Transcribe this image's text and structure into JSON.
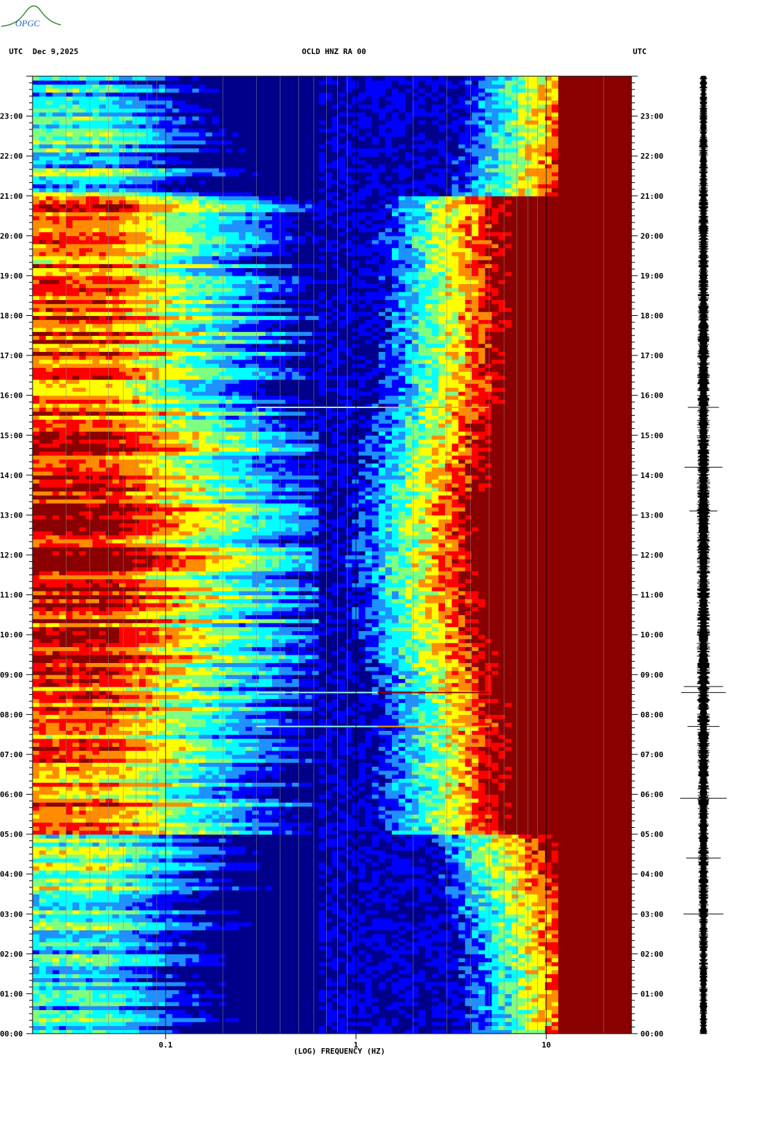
{
  "header": {
    "left_tz": "UTC",
    "date": "Dec 9,2025",
    "station": "OCLD HNZ RA 00",
    "right_tz": "UTC"
  },
  "logo": {
    "text": "OPGC",
    "colors": [
      "#2e8b2e",
      "#2a5fb0"
    ]
  },
  "footer_mark": "",
  "chart_data": {
    "type": "heatmap",
    "title": "OCLD HNZ RA 00",
    "xlabel": "(LOG) FREQUENCY (HZ)",
    "ylabel": "",
    "x_scale": "log",
    "xlim": [
      0.02,
      28
    ],
    "ylim_hours": [
      0,
      24
    ],
    "x_ticks": [
      {
        "value": 0.1,
        "label": "0.1"
      },
      {
        "value": 1,
        "label": "1"
      },
      {
        "value": 10,
        "label": "10"
      }
    ],
    "y_ticks": [
      {
        "hour": 0,
        "label": "00:00"
      },
      {
        "hour": 1,
        "label": "01:00"
      },
      {
        "hour": 2,
        "label": "02:00"
      },
      {
        "hour": 3,
        "label": "03:00"
      },
      {
        "hour": 4,
        "label": "04:00"
      },
      {
        "hour": 5,
        "label": "05:00"
      },
      {
        "hour": 6,
        "label": "06:00"
      },
      {
        "hour": 7,
        "label": "07:00"
      },
      {
        "hour": 8,
        "label": "08:00"
      },
      {
        "hour": 9,
        "label": "09:00"
      },
      {
        "hour": 10,
        "label": "10:00"
      },
      {
        "hour": 11,
        "label": "11:00"
      },
      {
        "hour": 12,
        "label": "12:00"
      },
      {
        "hour": 13,
        "label": "13:00"
      },
      {
        "hour": 14,
        "label": "14:00"
      },
      {
        "hour": 15,
        "label": "15:00"
      },
      {
        "hour": 16,
        "label": "16:00"
      },
      {
        "hour": 17,
        "label": "17:00"
      },
      {
        "hour": 18,
        "label": "18:00"
      },
      {
        "hour": 19,
        "label": "19:00"
      },
      {
        "hour": 20,
        "label": "20:00"
      },
      {
        "hour": 21,
        "label": "21:00"
      },
      {
        "hour": 22,
        "label": "22:00"
      },
      {
        "hour": 23,
        "label": "23:00"
      }
    ],
    "colormap": [
      "#00008b",
      "#0000ff",
      "#1e90ff",
      "#00ffff",
      "#7fff7f",
      "#ffff00",
      "#ff8c00",
      "#ff0000",
      "#8b0000"
    ],
    "grid": true,
    "events_hours": [
      8.55,
      15.7,
      7.7
    ],
    "trace": {
      "type": "waveform",
      "color": "#000000",
      "spikes_hours": [
        15.7,
        14.2,
        13.1,
        8.7,
        8.55,
        7.7,
        5.9,
        4.4,
        3.0
      ]
    }
  }
}
